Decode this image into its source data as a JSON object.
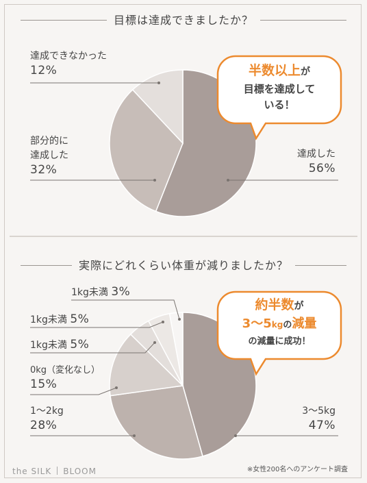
{
  "chart_data": [
    {
      "type": "pie",
      "title": "目標は達成できましたか？",
      "slices": [
        {
          "label": "達成した",
          "value": 56,
          "display": "56%",
          "color": "#a99d99"
        },
        {
          "label": "部分的に達成した",
          "value": 32,
          "display": "32%",
          "color": "#c7bdb8"
        },
        {
          "label": "達成できなかった",
          "value": 12,
          "display": "12%",
          "color": "#e4dfdc"
        }
      ],
      "label_lines": {
        "achieved": "達成した",
        "partial_1": "部分的に",
        "partial_2": "達成した",
        "failed": "達成できなかった"
      },
      "callout": {
        "line1_accent": "半数以上",
        "line1_rest": "が",
        "line2": "目標を達成して",
        "line3": "いる！"
      }
    },
    {
      "type": "pie",
      "title": "実際にどれくらい体重が減りましたか？",
      "slices": [
        {
          "label": "3〜5kg",
          "value": 47,
          "display": "47%",
          "color": "#a99d99"
        },
        {
          "label": "1〜2kg",
          "value": 28,
          "display": "28%",
          "color": "#bdb2ad"
        },
        {
          "label": "0kg（変化なし）",
          "value": 15,
          "display": "15%",
          "color": "#d7d0cc"
        },
        {
          "label": "1kg未満",
          "value": 5,
          "display": "5%",
          "color": "#e3dedb"
        },
        {
          "label": "1kg未満",
          "value": 5,
          "display": "5%",
          "color": "#ece8e5"
        },
        {
          "label": "1kg未満",
          "value": 3,
          "display": "3%",
          "color": "#f7f5f4"
        }
      ],
      "callout": {
        "line1_accent": "約半数",
        "line1_rest": "が",
        "line2_accent": "3〜5",
        "line2_unit": "kg",
        "line2_mid": "の",
        "line2_accent2": "減量",
        "line3": "の減量に成功！"
      }
    }
  ],
  "footer": {
    "note": "※女性200名へのアンケート調査",
    "brand_left": "the SILK",
    "brand_right": "BLOOM"
  }
}
